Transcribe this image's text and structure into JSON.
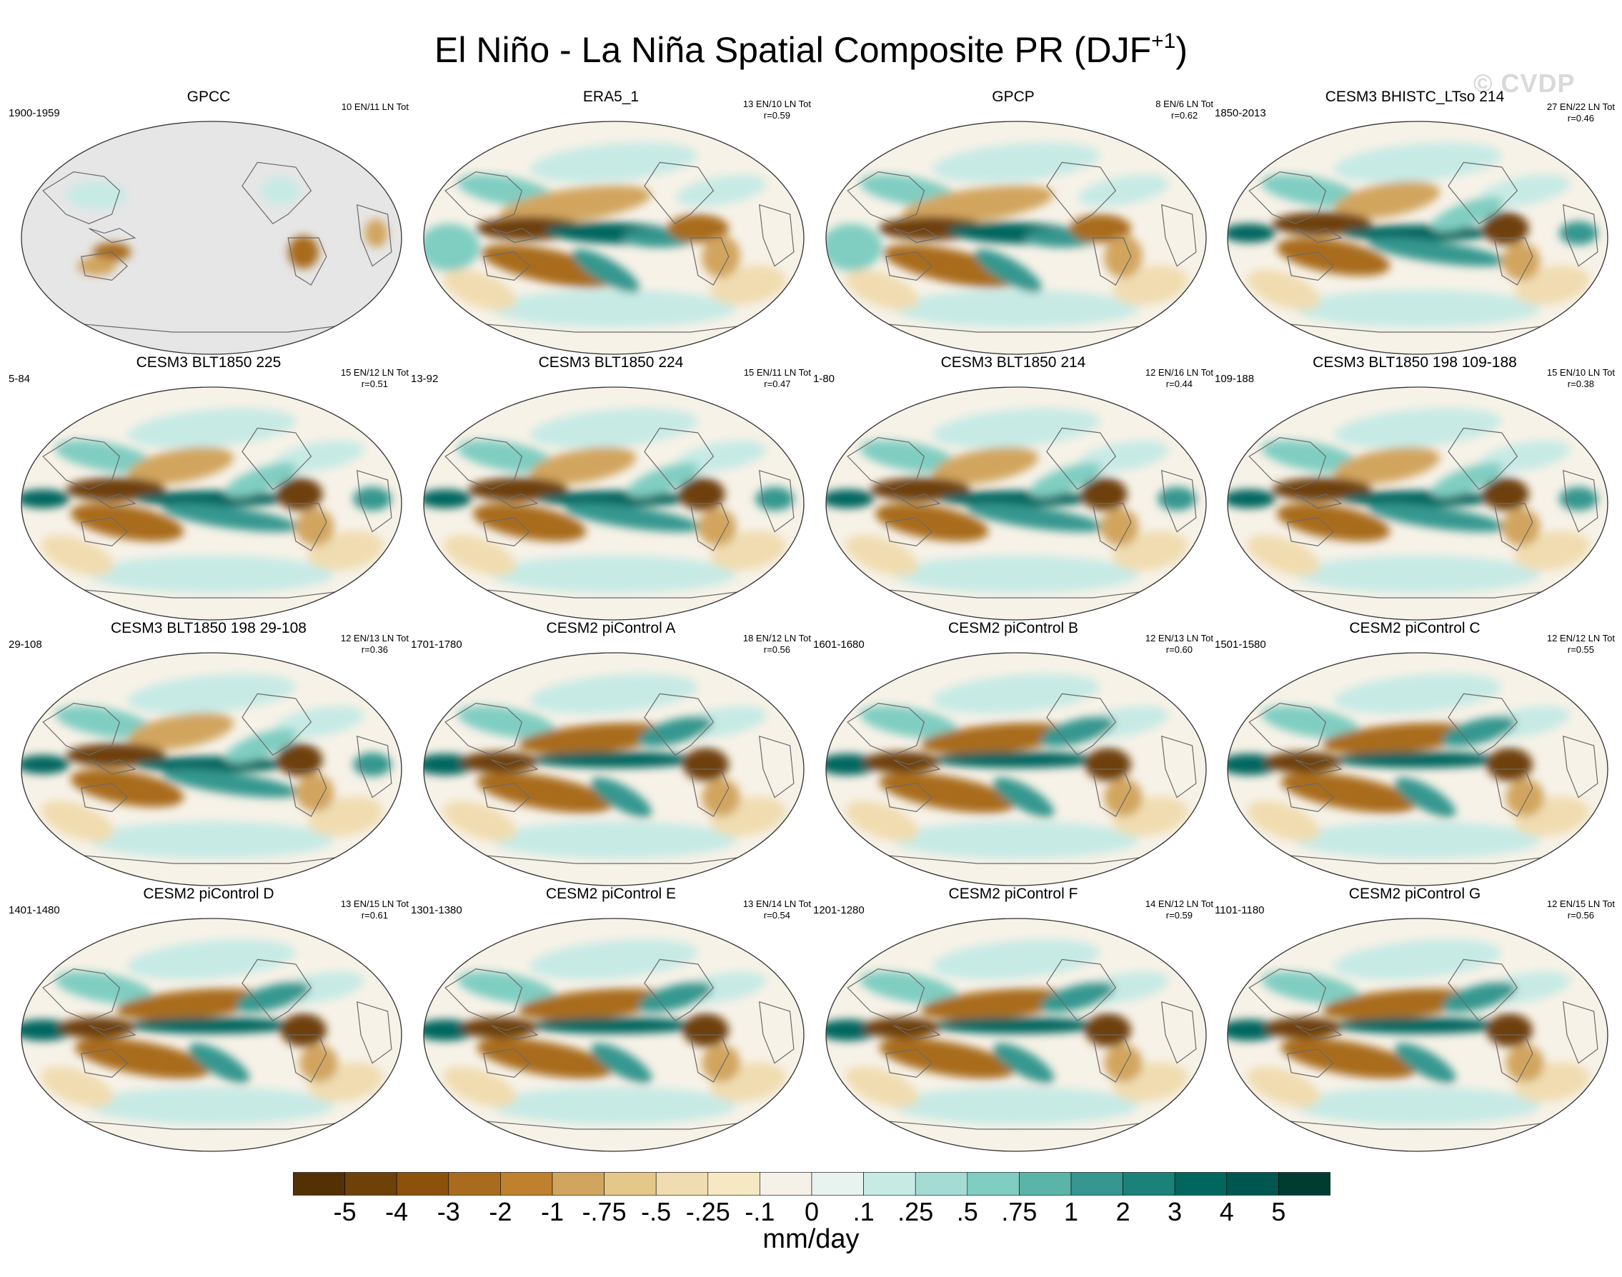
{
  "title": {
    "main": "El Niño - La Niña Spatial Composite PR (DJF",
    "sup": "+1",
    "close": ")"
  },
  "watermark": "© CVDP",
  "panels": [
    {
      "title": "GPCC",
      "years": "1900-1959",
      "counts": "10 EN/11 LN Tot",
      "corr": "",
      "style": "obs"
    },
    {
      "title": "ERA5_1",
      "years": "",
      "counts": "13 EN/10 LN Tot",
      "corr": "r=0.59",
      "style": "era"
    },
    {
      "title": "GPCP",
      "years": "",
      "counts": "8 EN/6 LN Tot",
      "corr": "r=0.62",
      "style": "gpcp"
    },
    {
      "title": "CESM3 BHISTC_LTso 214",
      "years": "1850-2013",
      "counts": "27 EN/22 LN Tot",
      "corr": "r=0.46",
      "style": "model"
    },
    {
      "title": "CESM3 BLT1850 225",
      "years": "5-84",
      "counts": "15 EN/12 LN Tot",
      "corr": "r=0.51",
      "style": "model"
    },
    {
      "title": "CESM3 BLT1850 224",
      "years": "13-92",
      "counts": "15 EN/11 LN Tot",
      "corr": "r=0.47",
      "style": "model"
    },
    {
      "title": "CESM3 BLT1850 214",
      "years": "1-80",
      "counts": "12 EN/16 LN Tot",
      "corr": "r=0.44",
      "style": "model"
    },
    {
      "title": "CESM3 BLT1850 198 109-188",
      "years": "109-188",
      "counts": "15 EN/10 LN Tot",
      "corr": "r=0.38",
      "style": "model"
    },
    {
      "title": "CESM3 BLT1850 198 29-108",
      "years": "29-108",
      "counts": "12 EN/13 LN Tot",
      "corr": "r=0.36",
      "style": "model"
    },
    {
      "title": "CESM2 piControl A",
      "years": "1701-1780",
      "counts": "18 EN/12 LN Tot",
      "corr": "r=0.56",
      "style": "cesm2"
    },
    {
      "title": "CESM2 piControl B",
      "years": "1601-1680",
      "counts": "12 EN/13 LN Tot",
      "corr": "r=0.60",
      "style": "cesm2"
    },
    {
      "title": "CESM2 piControl C",
      "years": "1501-1580",
      "counts": "12 EN/12 LN Tot",
      "corr": "r=0.55",
      "style": "cesm2"
    },
    {
      "title": "CESM2 piControl D",
      "years": "1401-1480",
      "counts": "13 EN/15 LN Tot",
      "corr": "r=0.61",
      "style": "cesm2"
    },
    {
      "title": "CESM2 piControl E",
      "years": "1301-1380",
      "counts": "13 EN/14 LN Tot",
      "corr": "r=0.54",
      "style": "cesm2"
    },
    {
      "title": "CESM2 piControl F",
      "years": "1201-1280",
      "counts": "14 EN/12 LN Tot",
      "corr": "r=0.59",
      "style": "cesm2"
    },
    {
      "title": "CESM2 piControl G",
      "years": "1101-1180",
      "counts": "12 EN/15 LN Tot",
      "corr": "r=0.56",
      "style": "cesm2"
    }
  ],
  "colorbar": {
    "colors": [
      "#543005",
      "#6e4108",
      "#8c510a",
      "#a96c1f",
      "#bf812d",
      "#d2a55f",
      "#e4c88a",
      "#f0dcb0",
      "#f6e8c3",
      "#f5f0e8",
      "#e8f2ef",
      "#c7eae5",
      "#a4dcd4",
      "#80cdc1",
      "#5ab4a8",
      "#35978f",
      "#1c8178",
      "#01665e",
      "#00574f",
      "#003c30"
    ],
    "labels": [
      "-5",
      "-4",
      "-3",
      "-2",
      "-1",
      "-.75",
      "-.5",
      "-.25",
      "-.1",
      "0",
      ".1",
      ".25",
      ".5",
      ".75",
      "1",
      "2",
      "3",
      "4",
      "5"
    ],
    "units": "mm/day"
  }
}
